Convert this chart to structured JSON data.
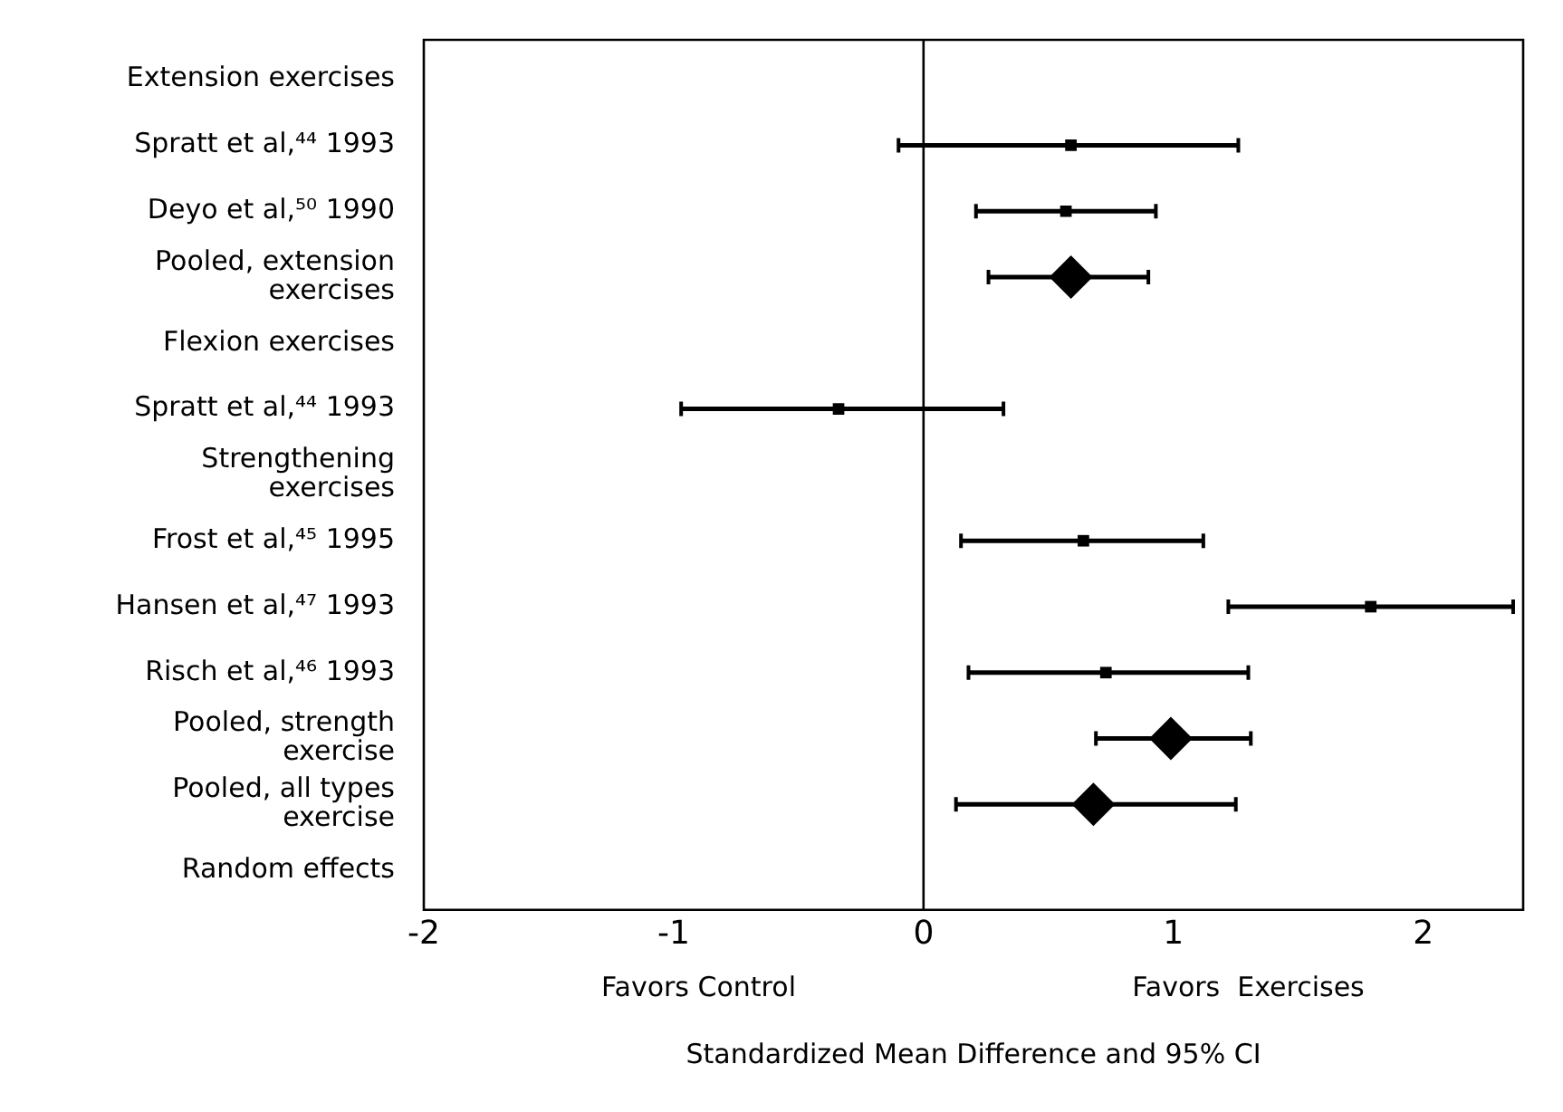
{
  "chart_data": {
    "type": "scatter",
    "orientation": "horizontal",
    "xlabel": "Standardized Mean Difference and 95% CI",
    "categories": [
      "Extension exercises",
      "Spratt et al,⁴⁴ 1993",
      "Deyo et al,⁵⁰ 1990",
      "Pooled, extension exercises",
      "Flexion exercises",
      "Spratt et al,⁴⁴ 1993",
      "Strengthening exercises",
      "Frost et al,⁴⁵ 1995",
      "Hansen et al,⁴⁷ 1993",
      "Risch et al,⁴⁶ 1993",
      "Pooled, strength exercise",
      "Pooled, all types exercise",
      "Random effects"
    ],
    "series": [
      {
        "color": "#000000",
        "marker": "square",
        "values": [
          null,
          0.59,
          0.57,
          null,
          null,
          -0.34,
          null,
          0.64,
          1.79,
          0.73,
          null,
          null,
          null
        ],
        "errors": [
          null,
          [
            -0.1,
            1.26
          ],
          [
            0.21,
            0.93
          ],
          null,
          null,
          [
            -0.97,
            0.32
          ],
          null,
          [
            0.15,
            1.12
          ],
          [
            1.22,
            2.36
          ],
          [
            0.18,
            1.3
          ],
          null,
          null,
          null
        ]
      },
      {
        "color": "#000000",
        "marker": "diamond",
        "values": [
          null,
          null,
          null,
          0.59,
          null,
          null,
          null,
          null,
          null,
          null,
          0.99,
          0.68,
          null
        ],
        "errors": [
          null,
          null,
          null,
          [
            0.26,
            0.9
          ],
          null,
          null,
          null,
          null,
          null,
          null,
          [
            0.69,
            1.31
          ],
          [
            0.13,
            1.25
          ],
          null
        ]
      }
    ],
    "xlim": [
      -2,
      2.4
    ],
    "xticks": [
      -2,
      -1,
      0,
      1,
      2
    ],
    "ref_lines": [
      {
        "axis": "x",
        "value": 0,
        "color": "#000000"
      }
    ],
    "annotations": [
      "Favors Control",
      "Favors  Exercises"
    ],
    "grid": false,
    "legend": false
  }
}
